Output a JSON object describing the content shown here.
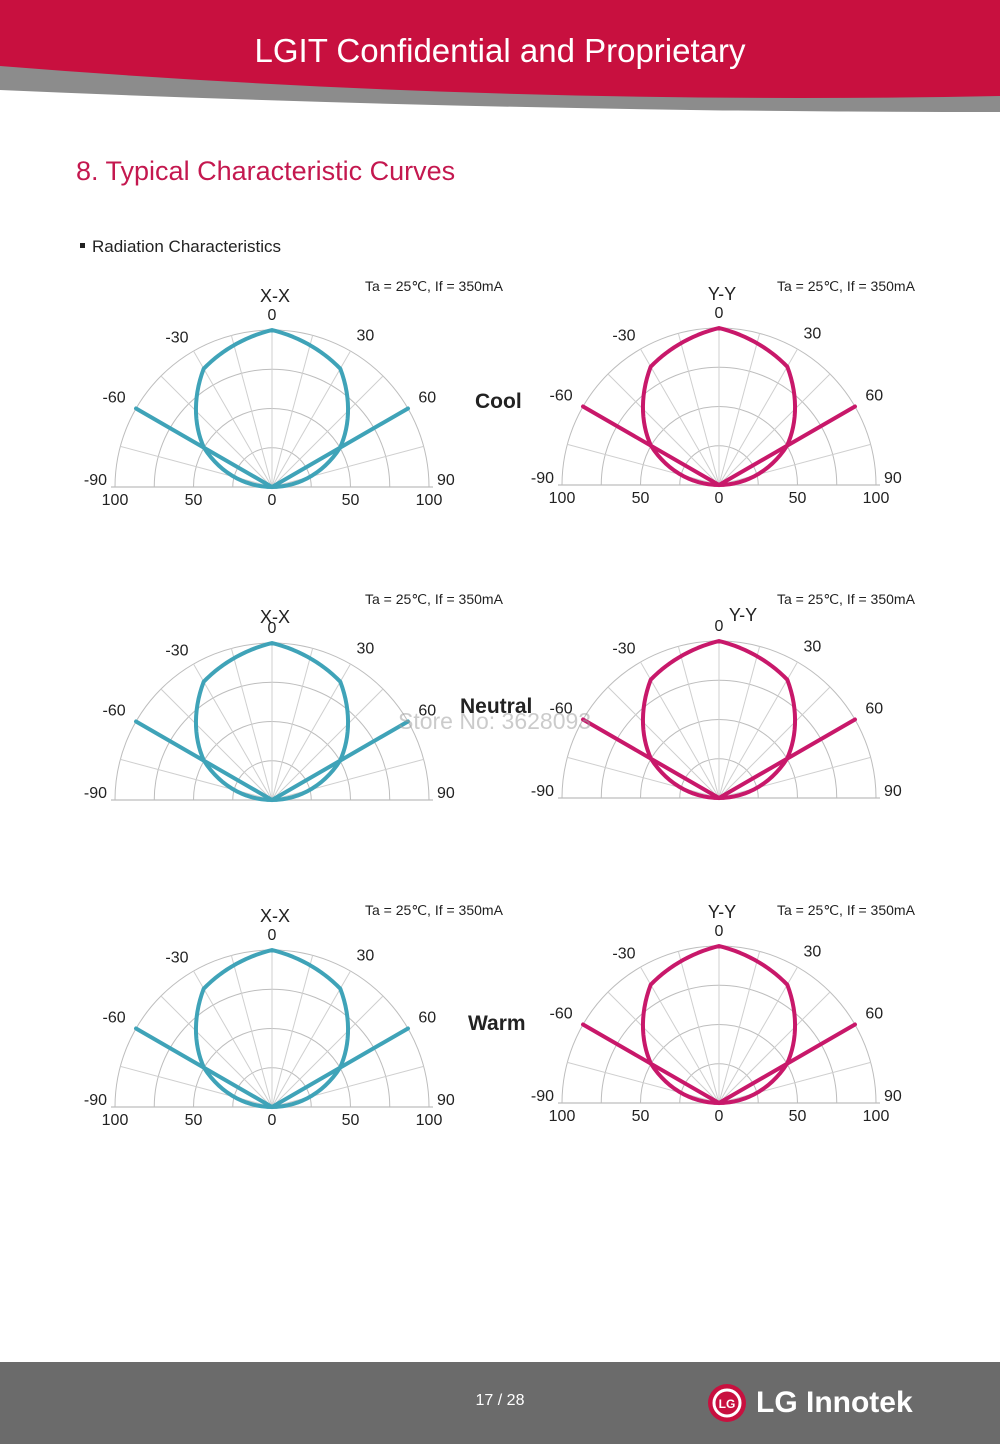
{
  "header": {
    "title": "LGIT Confidential and Proprietary"
  },
  "section": {
    "title": "8. Typical Characteristic Curves",
    "subtitle": "Radiation Characteristics"
  },
  "colors": {
    "banner": "#c8103f",
    "banner_accent": "#8c8c8c",
    "xx_curve": "#3fa3b8",
    "yy_curve": "#c8186a",
    "footer": "#6b6b6b"
  },
  "watermark": "Store No: 3628093",
  "rows": [
    {
      "label": "Cool"
    },
    {
      "label": "Neutral"
    },
    {
      "label": "Warm"
    }
  ],
  "footer": {
    "page": "17 / 28",
    "brand": "LG Innotek",
    "logo_glyph": "LG"
  },
  "chart_data": [
    {
      "type": "polar",
      "row": "Cool",
      "title": "X-X",
      "condition": "Ta = 25℃, If = 350mA",
      "color": "#3fa3b8",
      "angle_labels": [
        "0",
        "-30",
        "30",
        "-60",
        "60",
        "-90",
        "90"
      ],
      "radial_labels": [
        "100",
        "50",
        "0",
        "50",
        "100"
      ],
      "angles_deg": [
        -90,
        -60,
        -30,
        0,
        30,
        60,
        90
      ],
      "relative_intensity": [
        0,
        50,
        87,
        100,
        87,
        50,
        0
      ],
      "angle_range": [
        -90,
        90
      ],
      "intensity_range": [
        0,
        100
      ]
    },
    {
      "type": "polar",
      "row": "Cool",
      "title": "Y-Y",
      "condition": "Ta = 25℃, If = 350mA",
      "color": "#c8186a",
      "angle_labels": [
        "0",
        "-30",
        "30",
        "-60",
        "60",
        "-90",
        "90"
      ],
      "radial_labels": [
        "100",
        "50",
        "0",
        "50",
        "100"
      ],
      "angles_deg": [
        -90,
        -60,
        -30,
        0,
        30,
        60,
        90
      ],
      "relative_intensity": [
        0,
        50,
        87,
        100,
        87,
        50,
        0
      ],
      "angle_range": [
        -90,
        90
      ],
      "intensity_range": [
        0,
        100
      ]
    },
    {
      "type": "polar",
      "row": "Neutral",
      "title": "X-X",
      "condition": "Ta = 25℃, If = 350mA",
      "color": "#3fa3b8",
      "angle_labels": [
        "0",
        "-30",
        "30",
        "-60",
        "60",
        "-90",
        "90"
      ],
      "radial_labels": [],
      "angles_deg": [
        -90,
        -60,
        -30,
        0,
        30,
        60,
        90
      ],
      "relative_intensity": [
        0,
        50,
        87,
        100,
        87,
        50,
        0
      ],
      "angle_range": [
        -90,
        90
      ],
      "intensity_range": [
        0,
        100
      ]
    },
    {
      "type": "polar",
      "row": "Neutral",
      "title": "Y-Y",
      "condition": "Ta = 25℃, If = 350mA",
      "color": "#c8186a",
      "angle_labels": [
        "0",
        "-30",
        "30",
        "-60",
        "60",
        "-90",
        "90"
      ],
      "radial_labels": [],
      "angles_deg": [
        -90,
        -60,
        -30,
        0,
        30,
        60,
        90
      ],
      "relative_intensity": [
        0,
        50,
        87,
        100,
        87,
        50,
        0
      ],
      "angle_range": [
        -90,
        90
      ],
      "intensity_range": [
        0,
        100
      ]
    },
    {
      "type": "polar",
      "row": "Warm",
      "title": "X-X",
      "condition": "Ta = 25℃, If = 350mA",
      "color": "#3fa3b8",
      "angle_labels": [
        "0",
        "-30",
        "30",
        "-60",
        "60",
        "-90",
        "90"
      ],
      "radial_labels": [
        "100",
        "50",
        "0",
        "50",
        "100"
      ],
      "angles_deg": [
        -90,
        -60,
        -30,
        0,
        30,
        60,
        90
      ],
      "relative_intensity": [
        0,
        50,
        87,
        100,
        87,
        50,
        0
      ],
      "angle_range": [
        -90,
        90
      ],
      "intensity_range": [
        0,
        100
      ]
    },
    {
      "type": "polar",
      "row": "Warm",
      "title": "Y-Y",
      "condition": "Ta = 25℃, If = 350mA",
      "color": "#c8186a",
      "angle_labels": [
        "0",
        "-30",
        "30",
        "-60",
        "60",
        "-90",
        "90"
      ],
      "radial_labels": [
        "100",
        "50",
        "0",
        "50",
        "100"
      ],
      "angles_deg": [
        -90,
        -60,
        -30,
        0,
        30,
        60,
        90
      ],
      "relative_intensity": [
        0,
        50,
        87,
        100,
        87,
        50,
        0
      ],
      "angle_range": [
        -90,
        90
      ],
      "intensity_range": [
        0,
        100
      ]
    }
  ]
}
